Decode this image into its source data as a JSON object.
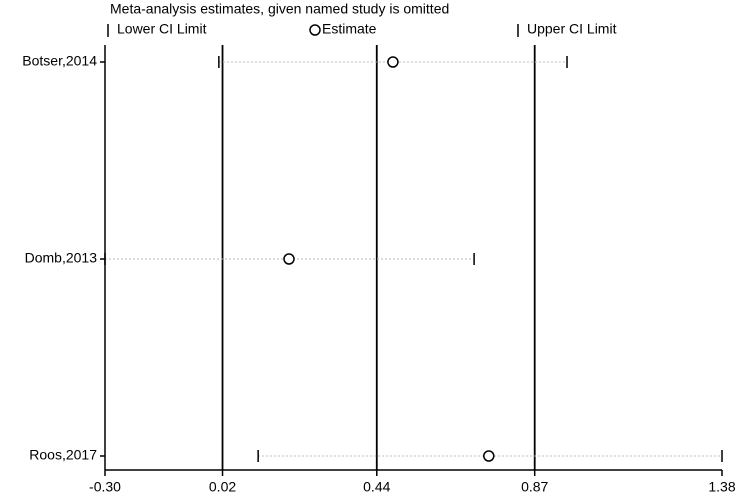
{
  "chart_data": {
    "type": "forest",
    "legend_title": "Meta-analysis estimates, given named study is omitted",
    "categories": [
      "Botser,2014",
      "Domb,2013",
      "Roos,2017"
    ],
    "series": [
      {
        "name": "Lower CI Limit",
        "color": "#000000",
        "values": [
          0.01,
          -0.3,
          0.117
        ]
      },
      {
        "name": "Estimate",
        "color": "#000000",
        "values": [
          0.484,
          0.201,
          0.745
        ]
      },
      {
        "name": "Upper CI Limit",
        "color": "#000000",
        "values": [
          0.958,
          0.705,
          1.38
        ]
      }
    ],
    "reference_lines": [
      0.02,
      0.44,
      0.87
    ],
    "xlim": [
      -0.3,
      1.38
    ],
    "xticks": [
      {
        "value": -0.3,
        "label": "-0.30"
      },
      0.02,
      0.44,
      0.87,
      1.38
    ]
  }
}
